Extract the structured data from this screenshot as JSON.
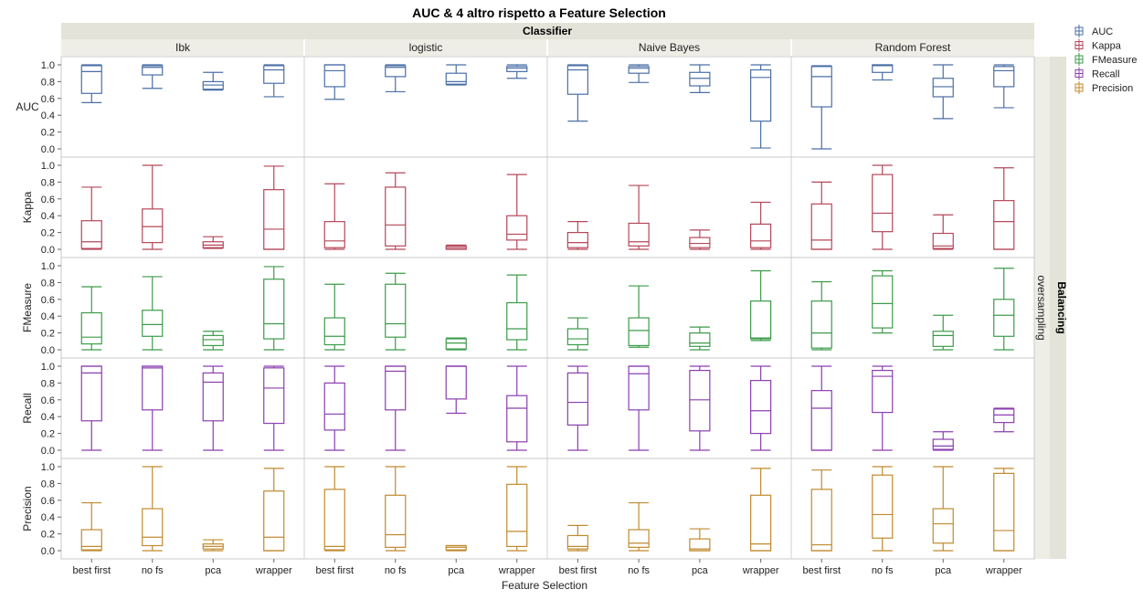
{
  "chart_data": {
    "type": "boxplot",
    "title": "AUC & 4 altro rispetto a Feature Selection",
    "column_group_title": "Classifier",
    "classifiers": [
      "Ibk",
      "logistic",
      "Naive Bayes",
      "Random Forest"
    ],
    "feature_selection": [
      "best first",
      "no fs",
      "pca",
      "wrapper"
    ],
    "xlabel": "Feature Selection",
    "row_group_title": "Balancing",
    "row_group_value": "oversampling",
    "ylim": [
      0,
      1
    ],
    "yticks": [
      "0.0",
      "0.2",
      "0.4",
      "0.6",
      "0.8",
      "1.0"
    ],
    "legend": {
      "placement": "top-right",
      "entries": [
        "AUC",
        "Kappa",
        "FMeasure",
        "Recall",
        "Precision"
      ]
    },
    "metrics": [
      {
        "name": "AUC",
        "color": "#4a6fa5",
        "boxes": [
          [
            [
              0.55,
              0.66,
              0.92,
              0.99,
              1.0
            ],
            [
              0.72,
              0.88,
              0.97,
              0.99,
              1.0
            ],
            [
              0.7,
              0.71,
              0.76,
              0.8,
              0.91
            ],
            [
              0.62,
              0.78,
              0.94,
              0.99,
              1.0
            ]
          ],
          [
            [
              0.59,
              0.74,
              0.93,
              1.0,
              1.0
            ],
            [
              0.68,
              0.86,
              0.97,
              0.99,
              1.0
            ],
            [
              0.76,
              0.77,
              0.8,
              0.9,
              1.0
            ],
            [
              0.84,
              0.92,
              0.96,
              0.98,
              1.0
            ]
          ],
          [
            [
              0.33,
              0.65,
              0.94,
              0.99,
              1.0
            ],
            [
              0.79,
              0.9,
              0.96,
              0.98,
              1.0
            ],
            [
              0.67,
              0.75,
              0.84,
              0.91,
              1.0
            ],
            [
              0.01,
              0.33,
              0.85,
              0.94,
              1.0
            ]
          ],
          [
            [
              0.0,
              0.5,
              0.86,
              0.98,
              0.99
            ],
            [
              0.82,
              0.91,
              0.99,
              1.0,
              1.0
            ],
            [
              0.36,
              0.62,
              0.74,
              0.84,
              1.0
            ],
            [
              0.49,
              0.74,
              0.93,
              0.98,
              1.0
            ]
          ]
        ]
      },
      {
        "name": "Kappa",
        "color": "#b5475a",
        "boxes": [
          [
            [
              0.0,
              0.01,
              0.09,
              0.34,
              0.74
            ],
            [
              0.0,
              0.08,
              0.27,
              0.48,
              1.0
            ],
            [
              0.01,
              0.02,
              0.05,
              0.09,
              0.15
            ],
            [
              0.0,
              0.0,
              0.24,
              0.71,
              0.99
            ]
          ],
          [
            [
              0.0,
              0.02,
              0.1,
              0.33,
              0.78
            ],
            [
              0.0,
              0.04,
              0.29,
              0.74,
              0.91
            ],
            [
              0.0,
              0.0,
              0.02,
              0.04,
              0.05
            ],
            [
              0.0,
              0.11,
              0.18,
              0.4,
              0.89
            ]
          ],
          [
            [
              0.0,
              0.02,
              0.08,
              0.2,
              0.33
            ],
            [
              0.0,
              0.04,
              0.09,
              0.31,
              0.76
            ],
            [
              0.0,
              0.02,
              0.07,
              0.14,
              0.23
            ],
            [
              0.0,
              0.02,
              0.1,
              0.3,
              0.56
            ]
          ],
          [
            [
              0.0,
              0.0,
              0.11,
              0.54,
              0.8
            ],
            [
              0.0,
              0.21,
              0.43,
              0.89,
              1.0
            ],
            [
              0.0,
              0.01,
              0.04,
              0.19,
              0.41
            ],
            [
              0.0,
              0.0,
              0.33,
              0.58,
              0.97
            ]
          ]
        ]
      },
      {
        "name": "FMeasure",
        "color": "#3d9b4a",
        "boxes": [
          [
            [
              0.0,
              0.07,
              0.15,
              0.44,
              0.75
            ],
            [
              0.0,
              0.16,
              0.3,
              0.47,
              0.87
            ],
            [
              0.0,
              0.05,
              0.12,
              0.17,
              0.22
            ],
            [
              0.0,
              0.13,
              0.31,
              0.84,
              0.99
            ]
          ],
          [
            [
              0.0,
              0.06,
              0.16,
              0.38,
              0.78
            ],
            [
              0.0,
              0.15,
              0.31,
              0.78,
              0.91
            ],
            [
              0.0,
              0.01,
              0.08,
              0.13,
              0.14
            ],
            [
              0.0,
              0.12,
              0.25,
              0.56,
              0.89
            ]
          ],
          [
            [
              0.0,
              0.06,
              0.13,
              0.25,
              0.38
            ],
            [
              0.03,
              0.05,
              0.23,
              0.38,
              0.76
            ],
            [
              0.0,
              0.04,
              0.08,
              0.2,
              0.27
            ],
            [
              0.11,
              0.13,
              0.14,
              0.58,
              0.94
            ]
          ],
          [
            [
              0.0,
              0.02,
              0.2,
              0.58,
              0.81
            ],
            [
              0.2,
              0.26,
              0.55,
              0.88,
              0.94
            ],
            [
              0.0,
              0.04,
              0.17,
              0.22,
              0.41
            ],
            [
              0.0,
              0.16,
              0.41,
              0.6,
              0.97
            ]
          ]
        ]
      },
      {
        "name": "Recall",
        "color": "#8b3fb0",
        "boxes": [
          [
            [
              0.0,
              0.35,
              0.92,
              1.0,
              1.0
            ],
            [
              0.0,
              0.48,
              0.98,
              1.0,
              1.0
            ],
            [
              0.0,
              0.35,
              0.81,
              0.92,
              1.0
            ],
            [
              0.0,
              0.32,
              0.74,
              0.98,
              1.0
            ]
          ],
          [
            [
              0.0,
              0.24,
              0.43,
              0.8,
              1.0
            ],
            [
              0.0,
              0.48,
              0.94,
              1.0,
              1.0
            ],
            [
              0.44,
              0.61,
              1.0,
              1.0,
              1.0
            ],
            [
              0.0,
              0.1,
              0.5,
              0.65,
              1.0
            ]
          ],
          [
            [
              0.0,
              0.3,
              0.57,
              0.92,
              1.0
            ],
            [
              0.0,
              0.48,
              0.91,
              1.0,
              1.0
            ],
            [
              0.0,
              0.23,
              0.6,
              0.95,
              1.0
            ],
            [
              0.0,
              0.2,
              0.47,
              0.83,
              1.0
            ]
          ],
          [
            [
              0.0,
              0.0,
              0.5,
              0.71,
              1.0
            ],
            [
              0.0,
              0.45,
              0.88,
              0.95,
              1.0
            ],
            [
              0.0,
              0.01,
              0.05,
              0.13,
              0.22
            ],
            [
              0.22,
              0.33,
              0.42,
              0.49,
              0.5
            ]
          ]
        ]
      },
      {
        "name": "Precision",
        "color": "#c08a2f",
        "boxes": [
          [
            [
              0.0,
              0.01,
              0.05,
              0.25,
              0.57
            ],
            [
              0.0,
              0.06,
              0.16,
              0.5,
              1.0
            ],
            [
              0.0,
              0.02,
              0.05,
              0.08,
              0.13
            ],
            [
              0.0,
              0.0,
              0.16,
              0.71,
              0.98
            ]
          ],
          [
            [
              0.0,
              0.01,
              0.05,
              0.73,
              1.0
            ],
            [
              0.0,
              0.04,
              0.19,
              0.66,
              1.0
            ],
            [
              0.0,
              0.01,
              0.04,
              0.06,
              0.06
            ],
            [
              0.0,
              0.05,
              0.23,
              0.79,
              1.0
            ]
          ],
          [
            [
              0.0,
              0.02,
              0.05,
              0.18,
              0.3
            ],
            [
              0.0,
              0.04,
              0.09,
              0.25,
              0.57
            ],
            [
              0.0,
              0.0,
              0.02,
              0.14,
              0.26
            ],
            [
              0.0,
              0.0,
              0.08,
              0.66,
              0.98
            ]
          ],
          [
            [
              0.0,
              0.0,
              0.07,
              0.73,
              0.96
            ],
            [
              0.0,
              0.15,
              0.43,
              0.9,
              1.0
            ],
            [
              0.0,
              0.09,
              0.32,
              0.5,
              1.0
            ],
            [
              0.0,
              0.0,
              0.24,
              0.92,
              0.98
            ]
          ]
        ]
      }
    ]
  }
}
